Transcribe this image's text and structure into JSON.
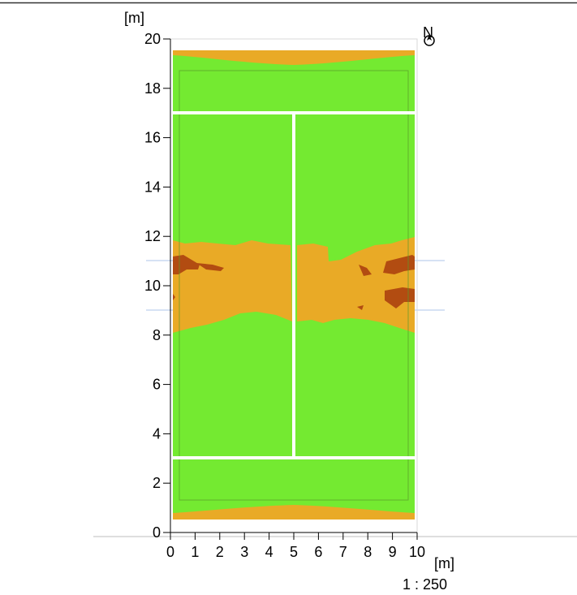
{
  "plan": {
    "x_unit": "[m]",
    "y_unit": "[m]",
    "scale": "1 : 250",
    "north": "N"
  },
  "axes": {
    "x_ticks": [
      "0",
      "1",
      "2",
      "3",
      "4",
      "5",
      "6",
      "7",
      "8",
      "9",
      "10"
    ],
    "y_ticks": [
      "0",
      "2",
      "4",
      "6",
      "8",
      "10",
      "12",
      "14",
      "16",
      "18",
      "20"
    ],
    "xlim": [
      0,
      10
    ],
    "ylim": [
      0,
      20
    ]
  },
  "colors": {
    "green_zone": "#74ea31",
    "orange_zone": "#e9aa26",
    "dark_zone": "#b24c11",
    "court_lines": "#ffffff",
    "axis": "#000000",
    "border": "#bcbcbc"
  }
}
